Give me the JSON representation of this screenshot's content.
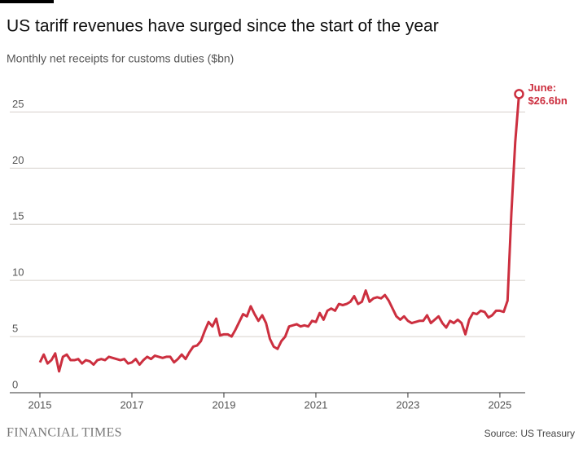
{
  "chart_data": {
    "type": "line",
    "title": "US tariff revenues have surged since the start of the year",
    "subtitle": "Monthly net receipts for customs duties ($bn)",
    "source": "Source: US Treasury",
    "brand": "FINANCIAL TIMES",
    "annotation": [
      "June:",
      "$26.6bn"
    ],
    "x": [
      "2015-01",
      "2015-02",
      "2015-03",
      "2015-04",
      "2015-05",
      "2015-06",
      "2015-07",
      "2015-08",
      "2015-09",
      "2015-10",
      "2015-11",
      "2015-12",
      "2016-01",
      "2016-02",
      "2016-03",
      "2016-04",
      "2016-05",
      "2016-06",
      "2016-07",
      "2016-08",
      "2016-09",
      "2016-10",
      "2016-11",
      "2016-12",
      "2017-01",
      "2017-02",
      "2017-03",
      "2017-04",
      "2017-05",
      "2017-06",
      "2017-07",
      "2017-08",
      "2017-09",
      "2017-10",
      "2017-11",
      "2017-12",
      "2018-01",
      "2018-02",
      "2018-03",
      "2018-04",
      "2018-05",
      "2018-06",
      "2018-07",
      "2018-08",
      "2018-09",
      "2018-10",
      "2018-11",
      "2018-12",
      "2019-01",
      "2019-02",
      "2019-03",
      "2019-04",
      "2019-05",
      "2019-06",
      "2019-07",
      "2019-08",
      "2019-09",
      "2019-10",
      "2019-11",
      "2019-12",
      "2020-01",
      "2020-02",
      "2020-03",
      "2020-04",
      "2020-05",
      "2020-06",
      "2020-07",
      "2020-08",
      "2020-09",
      "2020-10",
      "2020-11",
      "2020-12",
      "2021-01",
      "2021-02",
      "2021-03",
      "2021-04",
      "2021-05",
      "2021-06",
      "2021-07",
      "2021-08",
      "2021-09",
      "2021-10",
      "2021-11",
      "2021-12",
      "2022-01",
      "2022-02",
      "2022-03",
      "2022-04",
      "2022-05",
      "2022-06",
      "2022-07",
      "2022-08",
      "2022-09",
      "2022-10",
      "2022-11",
      "2022-12",
      "2023-01",
      "2023-02",
      "2023-03",
      "2023-04",
      "2023-05",
      "2023-06",
      "2023-07",
      "2023-08",
      "2023-09",
      "2023-10",
      "2023-11",
      "2023-12",
      "2024-01",
      "2024-02",
      "2024-03",
      "2024-04",
      "2024-05",
      "2024-06",
      "2024-07",
      "2024-08",
      "2024-09",
      "2024-10",
      "2024-11",
      "2024-12",
      "2025-01",
      "2025-02",
      "2025-03",
      "2025-04",
      "2025-05",
      "2025-06"
    ],
    "series": [
      {
        "name": "Customs duties",
        "color": "#cc2f3f",
        "values": [
          2.7,
          3.4,
          2.6,
          2.9,
          3.5,
          1.9,
          3.2,
          3.4,
          2.9,
          2.9,
          3.0,
          2.6,
          2.9,
          2.8,
          2.5,
          2.9,
          3.0,
          2.9,
          3.2,
          3.1,
          3.0,
          2.9,
          3.0,
          2.6,
          2.7,
          3.0,
          2.5,
          2.9,
          3.2,
          3.0,
          3.3,
          3.2,
          3.1,
          3.2,
          3.2,
          2.7,
          3.0,
          3.4,
          3.0,
          3.6,
          4.1,
          4.2,
          4.6,
          5.5,
          6.3,
          5.9,
          6.6,
          5.1,
          5.2,
          5.2,
          5.0,
          5.6,
          6.3,
          7.0,
          6.8,
          7.7,
          7.0,
          6.4,
          6.9,
          6.2,
          4.8,
          4.1,
          3.9,
          4.6,
          5.0,
          5.9,
          6.0,
          6.1,
          5.9,
          6.0,
          5.9,
          6.4,
          6.3,
          7.1,
          6.5,
          7.3,
          7.5,
          7.3,
          7.9,
          7.8,
          7.9,
          8.1,
          8.6,
          7.9,
          8.1,
          9.1,
          8.1,
          8.4,
          8.5,
          8.4,
          8.7,
          8.2,
          7.5,
          6.8,
          6.5,
          6.8,
          6.4,
          6.2,
          6.3,
          6.4,
          6.4,
          6.9,
          6.2,
          6.5,
          6.8,
          6.2,
          5.8,
          6.4,
          6.2,
          6.5,
          6.2,
          5.2,
          6.5,
          7.1,
          7.0,
          7.3,
          7.2,
          6.7,
          6.9,
          7.3,
          7.3,
          7.2,
          8.2,
          16.0,
          22.3,
          26.6
        ]
      }
    ],
    "xlim": [
      2015,
      2025.55
    ],
    "xticks": [
      2015,
      2017,
      2019,
      2021,
      2023,
      2025
    ],
    "ylim": [
      0,
      27.5
    ],
    "yticks": [
      0,
      5,
      10,
      15,
      20,
      25
    ],
    "grid": true
  }
}
